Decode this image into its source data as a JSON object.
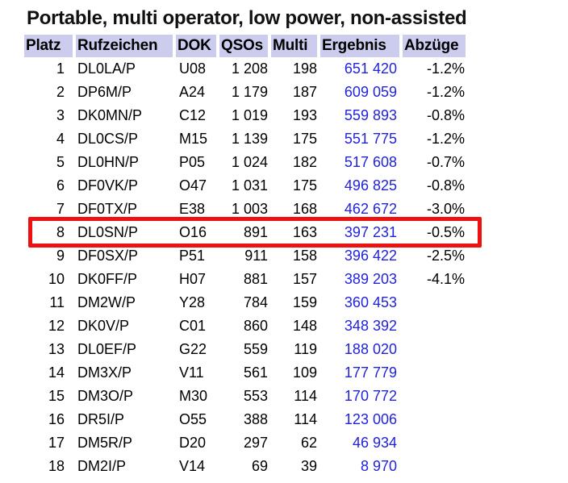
{
  "title": "Portable, multi operator, low power, non-assisted",
  "colors": {
    "header_bg": "#ccccee",
    "ergebnis_link_blue": "#2222dd",
    "highlight_red": "#ee1111",
    "text": "#000000",
    "background": "#ffffff"
  },
  "table": {
    "columns": [
      {
        "key": "platz",
        "label": "Platz"
      },
      {
        "key": "rufzeichen",
        "label": "Rufzeichen"
      },
      {
        "key": "dok",
        "label": "DOK"
      },
      {
        "key": "qsos",
        "label": "QSOs"
      },
      {
        "key": "multi",
        "label": "Multi"
      },
      {
        "key": "ergebnis",
        "label": "Ergebnis"
      },
      {
        "key": "abzuege",
        "label": "Abzüge"
      }
    ],
    "rows": [
      {
        "platz": "1",
        "rufzeichen": "DL0LA/P",
        "dok": "U08",
        "qsos": "1 208",
        "multi": "198",
        "ergebnis": "651 420",
        "abzuege": "-1.2%",
        "highlighted": false
      },
      {
        "platz": "2",
        "rufzeichen": "DP6M/P",
        "dok": "A24",
        "qsos": "1 179",
        "multi": "187",
        "ergebnis": "609 059",
        "abzuege": "-1.2%",
        "highlighted": false
      },
      {
        "platz": "3",
        "rufzeichen": "DK0MN/P",
        "dok": "C12",
        "qsos": "1 019",
        "multi": "193",
        "ergebnis": "559 893",
        "abzuege": "-0.8%",
        "highlighted": false
      },
      {
        "platz": "4",
        "rufzeichen": "DL0CS/P",
        "dok": "M15",
        "qsos": "1 139",
        "multi": "175",
        "ergebnis": "551 775",
        "abzuege": "-1.2%",
        "highlighted": false
      },
      {
        "platz": "5",
        "rufzeichen": "DL0HN/P",
        "dok": "P05",
        "qsos": "1 024",
        "multi": "182",
        "ergebnis": "517 608",
        "abzuege": "-0.7%",
        "highlighted": false
      },
      {
        "platz": "6",
        "rufzeichen": "DF0VK/P",
        "dok": "O47",
        "qsos": "1 031",
        "multi": "175",
        "ergebnis": "496 825",
        "abzuege": "-0.8%",
        "highlighted": false
      },
      {
        "platz": "7",
        "rufzeichen": "DF0TX/P",
        "dok": "E38",
        "qsos": "1 003",
        "multi": "168",
        "ergebnis": "462 672",
        "abzuege": "-3.0%",
        "highlighted": false
      },
      {
        "platz": "8",
        "rufzeichen": "DL0SN/P",
        "dok": "O16",
        "qsos": "891",
        "multi": "163",
        "ergebnis": "397 231",
        "abzuege": "-0.5%",
        "highlighted": true
      },
      {
        "platz": "9",
        "rufzeichen": "DF0SX/P",
        "dok": "P51",
        "qsos": "911",
        "multi": "158",
        "ergebnis": "396 422",
        "abzuege": "-2.5%",
        "highlighted": false
      },
      {
        "platz": "10",
        "rufzeichen": "DK0FF/P",
        "dok": "H07",
        "qsos": "881",
        "multi": "157",
        "ergebnis": "389 203",
        "abzuege": "-4.1%",
        "highlighted": false
      },
      {
        "platz": "11",
        "rufzeichen": "DM2W/P",
        "dok": "Y28",
        "qsos": "784",
        "multi": "159",
        "ergebnis": "360 453",
        "abzuege": "",
        "highlighted": false
      },
      {
        "platz": "12",
        "rufzeichen": "DK0V/P",
        "dok": "C01",
        "qsos": "860",
        "multi": "148",
        "ergebnis": "348 392",
        "abzuege": "",
        "highlighted": false
      },
      {
        "platz": "13",
        "rufzeichen": "DL0EF/P",
        "dok": "G22",
        "qsos": "559",
        "multi": "119",
        "ergebnis": "188 020",
        "abzuege": "",
        "highlighted": false
      },
      {
        "platz": "14",
        "rufzeichen": "DM3X/P",
        "dok": "V11",
        "qsos": "561",
        "multi": "109",
        "ergebnis": "177 779",
        "abzuege": "",
        "highlighted": false
      },
      {
        "platz": "15",
        "rufzeichen": "DM3O/P",
        "dok": "M30",
        "qsos": "553",
        "multi": "114",
        "ergebnis": "170 772",
        "abzuege": "",
        "highlighted": false
      },
      {
        "platz": "16",
        "rufzeichen": "DR5I/P",
        "dok": "O55",
        "qsos": "388",
        "multi": "114",
        "ergebnis": "123 006",
        "abzuege": "",
        "highlighted": false
      },
      {
        "platz": "17",
        "rufzeichen": "DM5R/P",
        "dok": "D20",
        "qsos": "297",
        "multi": "62",
        "ergebnis": "46 934",
        "abzuege": "",
        "highlighted": false
      },
      {
        "platz": "18",
        "rufzeichen": "DM2I/P",
        "dok": "V14",
        "qsos": "69",
        "multi": "39",
        "ergebnis": "8 970",
        "abzuege": "",
        "highlighted": false
      }
    ]
  },
  "highlight": {
    "row_platz": "8",
    "row_rufzeichen": "DL0SN/P"
  }
}
